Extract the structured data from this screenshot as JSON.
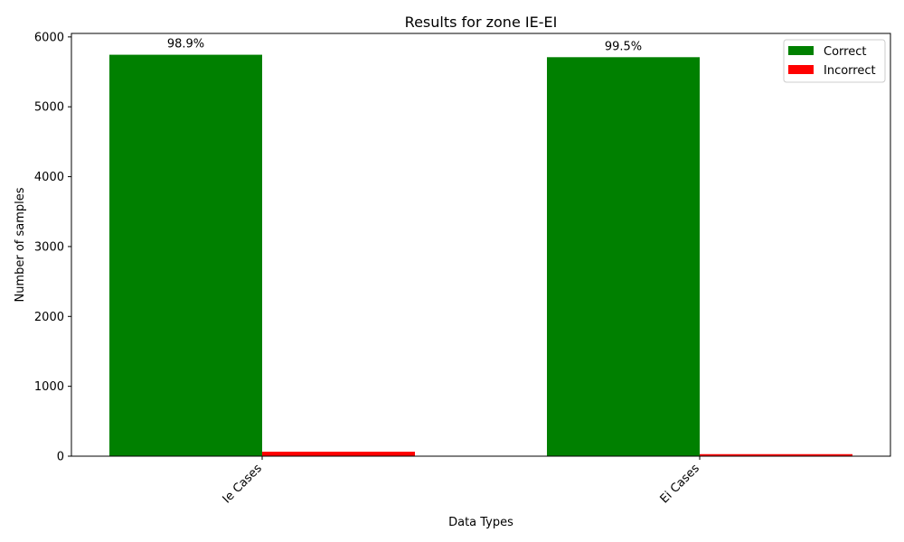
{
  "chart_data": {
    "type": "bar",
    "title": "Results for zone IE-EI",
    "xlabel": "Data Types",
    "ylabel": "Number of samples",
    "categories": [
      "Ie Cases",
      "Ei Cases"
    ],
    "series": [
      {
        "name": "Correct",
        "color": "#008000",
        "values": [
          5745,
          5710
        ]
      },
      {
        "name": "Incorrect",
        "color": "#ff0000",
        "values": [
          64,
          29
        ]
      }
    ],
    "data_labels": [
      "98.9%",
      "99.5%"
    ],
    "ylim": [
      0,
      6050
    ],
    "yticks": [
      0,
      1000,
      2000,
      3000,
      4000,
      5000,
      6000
    ],
    "grid": false,
    "legend": "top-right"
  }
}
